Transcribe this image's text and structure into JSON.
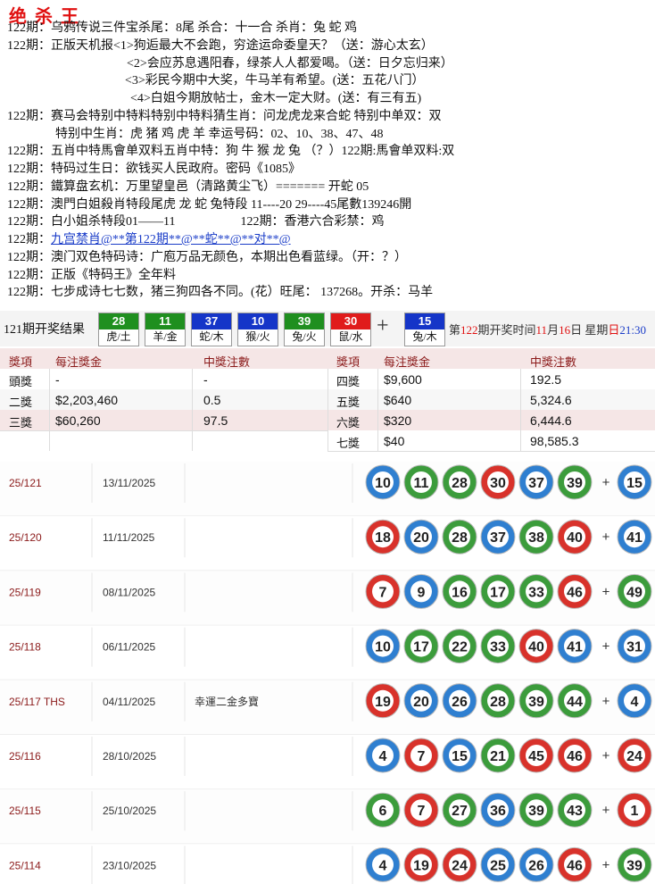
{
  "title": "绝 杀 王",
  "lines": [
    [
      "122期：乌鸦传说三件宝杀尾：8尾 杀合：十一合 杀肖：兔 蛇 鸡"
    ],
    [
      "122期：正版天机报<1>狗逅最大不会跑，穷途运命委皇天？（送：游心太玄）"
    ],
    [
      "<2>会应苏息遇阳春，绿茶人人都爱喝。（送：日夕忘归来）"
    ],
    [
      "<3>彩民今期中大奖，牛马羊有希望。(送：五花八门）"
    ],
    [
      "<4>白姐今期放帖士，金木一定大财。(送：有三有五)"
    ],
    [
      "122期：赛马会特别中特料特别中特料猜生肖：问龙虎龙来合蛇 特别中单双：双"
    ],
    [
      "特别中生肖：虎 猪 鸡 虎 羊 幸运号码：02、10、38、47、48"
    ],
    [
      "122期：五肖中特馬會单双料五肖中特：狗 牛 猴 龙 兔 （？）122期:馬會单双料:双"
    ],
    [
      "122期：特码过生日：欲钱买人民政府。密码《1085》"
    ],
    [
      "122期：鐵算盘玄机：万里望皇邑（清路黄尘飞）======= 开蛇 05"
    ],
    [
      "122期：澳門白姐殺肖特段尾虎 龙 蛇 兔特段 11----20 29----45尾數139246開"
    ],
    [
      "122期：白小姐杀特段01——11",
      "122期：香港六合彩禁：鸡"
    ],
    [
      "122期：",
      "九宫禁肖@**第122期**@**蛇**@**对**@"
    ],
    [
      "122期：澳门双色特码诗：广庖万品无颜色，本期出色看蓝绿。（开：？）"
    ],
    [
      "122期：正版《特码王》全年料"
    ],
    [
      "122期：七步成诗七七数，猪三狗四各不同。(花）旺尾： 137268。开杀：马羊"
    ]
  ],
  "result": {
    "label": "121期开奖结果",
    "plus": "+",
    "balls": [
      {
        "number": "28",
        "zodiac": "虎/土",
        "color": "#1f8f1f"
      },
      {
        "number": "11",
        "zodiac": "羊/金",
        "color": "#1f8f1f"
      },
      {
        "number": "37",
        "zodiac": "蛇/木",
        "color": "#1535c8"
      },
      {
        "number": "10",
        "zodiac": "猴/火",
        "color": "#1535c8"
      },
      {
        "number": "39",
        "zodiac": "兔/火",
        "color": "#1f8f1f"
      },
      {
        "number": "30",
        "zodiac": "鼠/水",
        "color": "#e01b1b"
      },
      {
        "number": "15",
        "zodiac": "兔/木",
        "color": "#1535c8"
      }
    ],
    "schedule": [
      "第",
      "122",
      "期开奖时间",
      "11",
      "月",
      "16",
      "日 星期",
      "日",
      "21:30"
    ]
  },
  "prize_table": {
    "headers": [
      "獎項",
      "每注獎金",
      "中獎注數"
    ],
    "left_rows": [
      [
        "頭獎",
        "-",
        "-"
      ],
      [
        "二獎",
        "$2,203,460",
        "0.5"
      ],
      [
        "三獎",
        "$60,260",
        "97.5"
      ]
    ],
    "right_rows": [
      [
        "四獎",
        "$9,600",
        "192.5"
      ],
      [
        "五獎",
        "$640",
        "5,324.6"
      ],
      [
        "六獎",
        "$320",
        "6,444.6"
      ],
      [
        "七獎",
        "$40",
        "98,585.3"
      ]
    ]
  },
  "history": {
    "plus": "+",
    "palette": {
      "r": "#d8322b",
      "b": "#2f7fd0",
      "g": "#3c9c3c"
    },
    "rows": [
      {
        "draw": "25/121",
        "date": "13/11/2025",
        "numbers": [
          10,
          11,
          28,
          30,
          37,
          39
        ],
        "special": 15,
        "colors": [
          "b",
          "g",
          "g",
          "r",
          "b",
          "g",
          "b"
        ]
      },
      {
        "draw": "25/120",
        "date": "11/11/2025",
        "numbers": [
          18,
          20,
          28,
          37,
          38,
          40
        ],
        "special": 41,
        "colors": [
          "r",
          "b",
          "g",
          "b",
          "g",
          "r",
          "b"
        ]
      },
      {
        "draw": "25/119",
        "date": "08/11/2025",
        "numbers": [
          7,
          9,
          16,
          17,
          33,
          46
        ],
        "special": 49,
        "colors": [
          "r",
          "b",
          "g",
          "g",
          "g",
          "r",
          "g"
        ]
      },
      {
        "draw": "25/118",
        "date": "06/11/2025",
        "numbers": [
          10,
          17,
          22,
          33,
          40,
          41
        ],
        "special": 31,
        "colors": [
          "b",
          "g",
          "g",
          "g",
          "r",
          "b",
          "b"
        ]
      },
      {
        "draw": "25/117 THS",
        "date": "04/11/2025",
        "note": "幸運二金多寶",
        "numbers": [
          19,
          20,
          26,
          28,
          39,
          44
        ],
        "special": 4,
        "colors": [
          "r",
          "b",
          "b",
          "g",
          "g",
          "g",
          "b"
        ]
      },
      {
        "draw": "25/116",
        "date": "28/10/2025",
        "numbers": [
          4,
          7,
          15,
          21,
          45,
          46
        ],
        "special": 24,
        "colors": [
          "b",
          "r",
          "b",
          "g",
          "r",
          "r",
          "r"
        ]
      },
      {
        "draw": "25/115",
        "date": "25/10/2025",
        "numbers": [
          6,
          7,
          27,
          36,
          39,
          43
        ],
        "special": 1,
        "colors": [
          "g",
          "r",
          "g",
          "b",
          "g",
          "g",
          "r"
        ]
      },
      {
        "draw": "25/114",
        "date": "23/10/2025",
        "numbers": [
          4,
          19,
          24,
          25,
          26,
          46
        ],
        "special": 39,
        "colors": [
          "b",
          "r",
          "r",
          "b",
          "b",
          "r",
          "g"
        ]
      }
    ]
  }
}
